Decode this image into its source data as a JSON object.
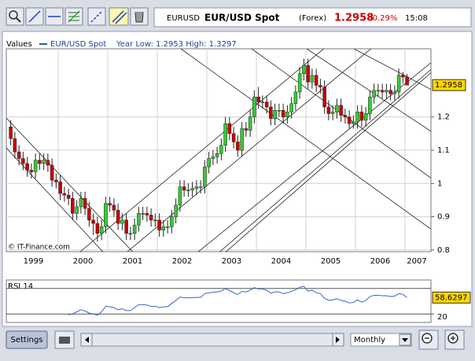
{
  "toolbar": {
    "symbol": "EURUSD",
    "name": "EUR/USD Spot",
    "market": "(Forex)",
    "price": "1.2958",
    "change": "-0.29%",
    "time": "15:08"
  },
  "controls": {
    "settings": "Settings",
    "period": "Monthly"
  },
  "chart_data": [
    {
      "type": "candlestick",
      "legend_title": "Values",
      "year_range": "Year Low: 1.2953 High: 1.3297",
      "source": "© IT-Finance.com",
      "years": [
        "1999",
        "2000",
        "2001",
        "2002",
        "2003",
        "2004",
        "2005",
        "2006",
        "2007"
      ],
      "ylim": [
        0.795,
        1.405
      ],
      "yticks": [
        0.8,
        0.9,
        1,
        1.1,
        1.2
      ],
      "last_value": 1.2958,
      "grid": true,
      "up_color": "#33cc33",
      "down_color": "#cc0000",
      "series": [
        {
          "name": "EUR/USD Spot",
          "color": "#3355aa",
          "values": [
            [
              1.17,
              1.19,
              1.115,
              1.135
            ],
            [
              1.135,
              1.155,
              1.075,
              1.095
            ],
            [
              1.095,
              1.115,
              1.055,
              1.075
            ],
            [
              1.075,
              1.095,
              1.04,
              1.06
            ],
            [
              1.06,
              1.08,
              1.02,
              1.04
            ],
            [
              1.04,
              1.06,
              1.015,
              1.035
            ],
            [
              1.035,
              1.09,
              1.015,
              1.07
            ],
            [
              1.07,
              1.09,
              1.04,
              1.06
            ],
            [
              1.06,
              1.09,
              1.04,
              1.07
            ],
            [
              1.07,
              1.09,
              1.035,
              1.055
            ],
            [
              1.055,
              1.075,
              0.99,
              1.01
            ],
            [
              1.01,
              1.03,
              0.985,
              1.005
            ],
            [
              1.005,
              1.025,
              0.95,
              0.97
            ],
            [
              0.97,
              0.99,
              0.945,
              0.965
            ],
            [
              0.965,
              0.985,
              0.935,
              0.955
            ],
            [
              0.955,
              0.975,
              0.89,
              0.91
            ],
            [
              0.91,
              0.95,
              0.89,
              0.93
            ],
            [
              0.93,
              0.975,
              0.91,
              0.955
            ],
            [
              0.955,
              0.975,
              0.905,
              0.925
            ],
            [
              0.925,
              0.945,
              0.87,
              0.89
            ],
            [
              0.89,
              0.91,
              0.845,
              0.88
            ],
            [
              0.88,
              0.9,
              0.825,
              0.85
            ],
            [
              0.85,
              0.89,
              0.83,
              0.87
            ],
            [
              0.87,
              0.96,
              0.85,
              0.94
            ],
            [
              0.94,
              0.96,
              0.915,
              0.935
            ],
            [
              0.935,
              0.955,
              0.9,
              0.92
            ],
            [
              0.92,
              0.94,
              0.86,
              0.88
            ],
            [
              0.88,
              0.91,
              0.86,
              0.89
            ],
            [
              0.89,
              0.91,
              0.83,
              0.85
            ],
            [
              0.85,
              0.87,
              0.83,
              0.85
            ],
            [
              0.85,
              0.895,
              0.83,
              0.875
            ],
            [
              0.875,
              0.93,
              0.855,
              0.91
            ],
            [
              0.91,
              0.93,
              0.89,
              0.91
            ],
            [
              0.91,
              0.93,
              0.885,
              0.905
            ],
            [
              0.905,
              0.925,
              0.87,
              0.89
            ],
            [
              0.89,
              0.91,
              0.87,
              0.89
            ],
            [
              0.89,
              0.91,
              0.84,
              0.86
            ],
            [
              0.86,
              0.89,
              0.84,
              0.87
            ],
            [
              0.87,
              0.89,
              0.85,
              0.87
            ],
            [
              0.87,
              0.92,
              0.85,
              0.9
            ],
            [
              0.9,
              0.955,
              0.88,
              0.935
            ],
            [
              0.935,
              1.01,
              0.915,
              0.99
            ],
            [
              0.99,
              1.01,
              0.96,
              0.98
            ],
            [
              0.98,
              1.0,
              0.96,
              0.98
            ],
            [
              0.98,
              1.005,
              0.96,
              0.985
            ],
            [
              0.985,
              1.01,
              0.965,
              0.99
            ],
            [
              0.99,
              1.01,
              0.97,
              0.99
            ],
            [
              0.99,
              1.07,
              0.97,
              1.05
            ],
            [
              1.05,
              1.095,
              1.03,
              1.075
            ],
            [
              1.075,
              1.1,
              1.055,
              1.08
            ],
            [
              1.08,
              1.11,
              1.06,
              1.09
            ],
            [
              1.09,
              1.135,
              1.07,
              1.115
            ],
            [
              1.115,
              1.2,
              1.095,
              1.18
            ],
            [
              1.18,
              1.2,
              1.13,
              1.15
            ],
            [
              1.15,
              1.17,
              1.105,
              1.125
            ],
            [
              1.125,
              1.145,
              1.08,
              1.1
            ],
            [
              1.1,
              1.185,
              1.08,
              1.165
            ],
            [
              1.165,
              1.185,
              1.14,
              1.16
            ],
            [
              1.16,
              1.22,
              1.14,
              1.2
            ],
            [
              1.2,
              1.28,
              1.18,
              1.26
            ],
            [
              1.26,
              1.29,
              1.225,
              1.245
            ],
            [
              1.245,
              1.265,
              1.225,
              1.245
            ],
            [
              1.245,
              1.265,
              1.21,
              1.23
            ],
            [
              1.23,
              1.25,
              1.175,
              1.195
            ],
            [
              1.195,
              1.24,
              1.175,
              1.22
            ],
            [
              1.22,
              1.24,
              1.2,
              1.22
            ],
            [
              1.22,
              1.24,
              1.18,
              1.2
            ],
            [
              1.2,
              1.235,
              1.18,
              1.215
            ],
            [
              1.215,
              1.26,
              1.195,
              1.24
            ],
            [
              1.24,
              1.295,
              1.22,
              1.275
            ],
            [
              1.275,
              1.35,
              1.255,
              1.33
            ],
            [
              1.33,
              1.375,
              1.31,
              1.355
            ],
            [
              1.355,
              1.375,
              1.285,
              1.305
            ],
            [
              1.305,
              1.345,
              1.285,
              1.325
            ],
            [
              1.325,
              1.345,
              1.275,
              1.295
            ],
            [
              1.295,
              1.315,
              1.27,
              1.29
            ],
            [
              1.29,
              1.31,
              1.21,
              1.23
            ],
            [
              1.23,
              1.25,
              1.19,
              1.21
            ],
            [
              1.21,
              1.235,
              1.19,
              1.215
            ],
            [
              1.215,
              1.255,
              1.195,
              1.235
            ],
            [
              1.235,
              1.255,
              1.185,
              1.205
            ],
            [
              1.205,
              1.225,
              1.18,
              1.2
            ],
            [
              1.2,
              1.22,
              1.165,
              1.18
            ],
            [
              1.18,
              1.205,
              1.165,
              1.185
            ],
            [
              1.185,
              1.235,
              1.165,
              1.215
            ],
            [
              1.215,
              1.235,
              1.17,
              1.19
            ],
            [
              1.19,
              1.23,
              1.17,
              1.21
            ],
            [
              1.21,
              1.28,
              1.19,
              1.26
            ],
            [
              1.26,
              1.3,
              1.24,
              1.28
            ],
            [
              1.28,
              1.3,
              1.26,
              1.28
            ],
            [
              1.28,
              1.3,
              1.255,
              1.275
            ],
            [
              1.275,
              1.3,
              1.255,
              1.28
            ],
            [
              1.28,
              1.3,
              1.25,
              1.27
            ],
            [
              1.27,
              1.295,
              1.25,
              1.275
            ],
            [
              1.275,
              1.3455,
              1.255,
              1.3255
            ],
            [
              1.3255,
              1.3355,
              1.3,
              1.32
            ],
            [
              1.32,
              1.3297,
              1.2953,
              1.2958
            ]
          ]
        }
      ]
    },
    {
      "type": "line",
      "title": "RSI 14",
      "ylim": [
        0,
        100
      ],
      "yticks": [
        20
      ],
      "levels": [
        20,
        80
      ],
      "last_value": 58.6297,
      "series": [
        {
          "color": "#3366cc",
          "values": [
            null,
            null,
            null,
            null,
            null,
            null,
            null,
            null,
            null,
            null,
            null,
            null,
            null,
            null,
            18,
            20,
            25,
            30,
            27,
            22,
            20,
            17,
            25,
            38,
            37,
            35,
            30,
            32,
            28,
            28,
            35,
            42,
            42,
            41,
            38,
            38,
            35,
            37,
            37,
            45,
            52,
            60,
            58,
            58,
            58,
            59,
            59,
            68,
            70,
            71,
            72,
            74,
            80,
            75,
            70,
            66,
            73,
            72,
            76,
            82,
            79,
            79,
            76,
            69,
            72,
            72,
            68,
            70,
            73,
            77,
            83,
            85,
            74,
            76,
            70,
            68,
            57,
            52,
            53,
            56,
            52,
            50,
            46,
            47,
            53,
            48,
            52,
            61,
            64,
            64,
            63,
            63,
            61,
            62,
            68,
            66,
            58.6297
          ]
        }
      ]
    }
  ]
}
